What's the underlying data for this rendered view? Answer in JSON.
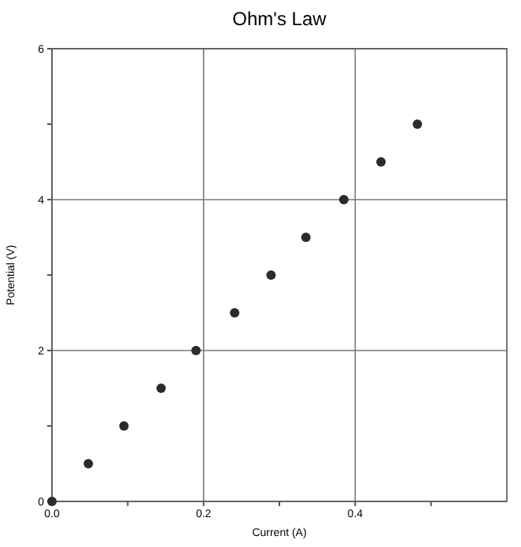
{
  "chart_data": {
    "type": "scatter",
    "title": "Ohm's Law",
    "xlabel": "Current (A)",
    "ylabel": "Potential (V)",
    "x": [
      0,
      0.048,
      0.095,
      0.144,
      0.19,
      0.241,
      0.289,
      0.335,
      0.385,
      0.434,
      0.482
    ],
    "values": [
      0,
      0.5,
      1,
      1.5,
      2,
      2.5,
      3,
      3.5,
      4,
      4.5,
      5
    ],
    "color": "#2b2b2b",
    "marker": "circle",
    "grid": true,
    "xlim": [
      0,
      0.6
    ],
    "xticks": [
      {
        "value": 0,
        "label": "0.0"
      },
      {
        "value": 0.1,
        "label": null
      },
      0.2,
      {
        "value": 0.3,
        "label": null
      },
      0.4,
      {
        "value": 0.5,
        "label": null
      }
    ],
    "ylim": [
      0,
      6
    ],
    "yticks": [
      0,
      {
        "value": 1,
        "label": null
      },
      2,
      {
        "value": 3,
        "label": null
      },
      4,
      {
        "value": 5,
        "label": null
      },
      6
    ]
  }
}
